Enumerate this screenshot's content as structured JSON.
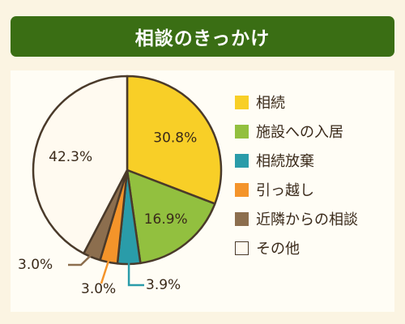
{
  "title": "相談のきっかけ",
  "chart_data": {
    "type": "pie",
    "title": "相談のきっかけ",
    "start_angle_deg": 0,
    "direction": "clockwise",
    "legend_position": "right",
    "slices": [
      {
        "label": "相続",
        "value": 30.8,
        "display": "30.8%",
        "color": "#f8cf27"
      },
      {
        "label": "施設への入居",
        "value": 16.9,
        "display": "16.9%",
        "color": "#92c03f"
      },
      {
        "label": "相続放棄",
        "value": 3.9,
        "display": "3.9%",
        "color": "#2a9ca9"
      },
      {
        "label": "引っ越し",
        "value": 3.0,
        "display": "3.0%",
        "color": "#f4942a"
      },
      {
        "label": "近隣からの相談",
        "value": 3.0,
        "display": "3.0%",
        "color": "#8c6e4e"
      },
      {
        "label": "その他",
        "value": 42.3,
        "display": "42.3%",
        "color": "#fffaf0"
      }
    ],
    "outline_color": "#4a3a2a"
  }
}
